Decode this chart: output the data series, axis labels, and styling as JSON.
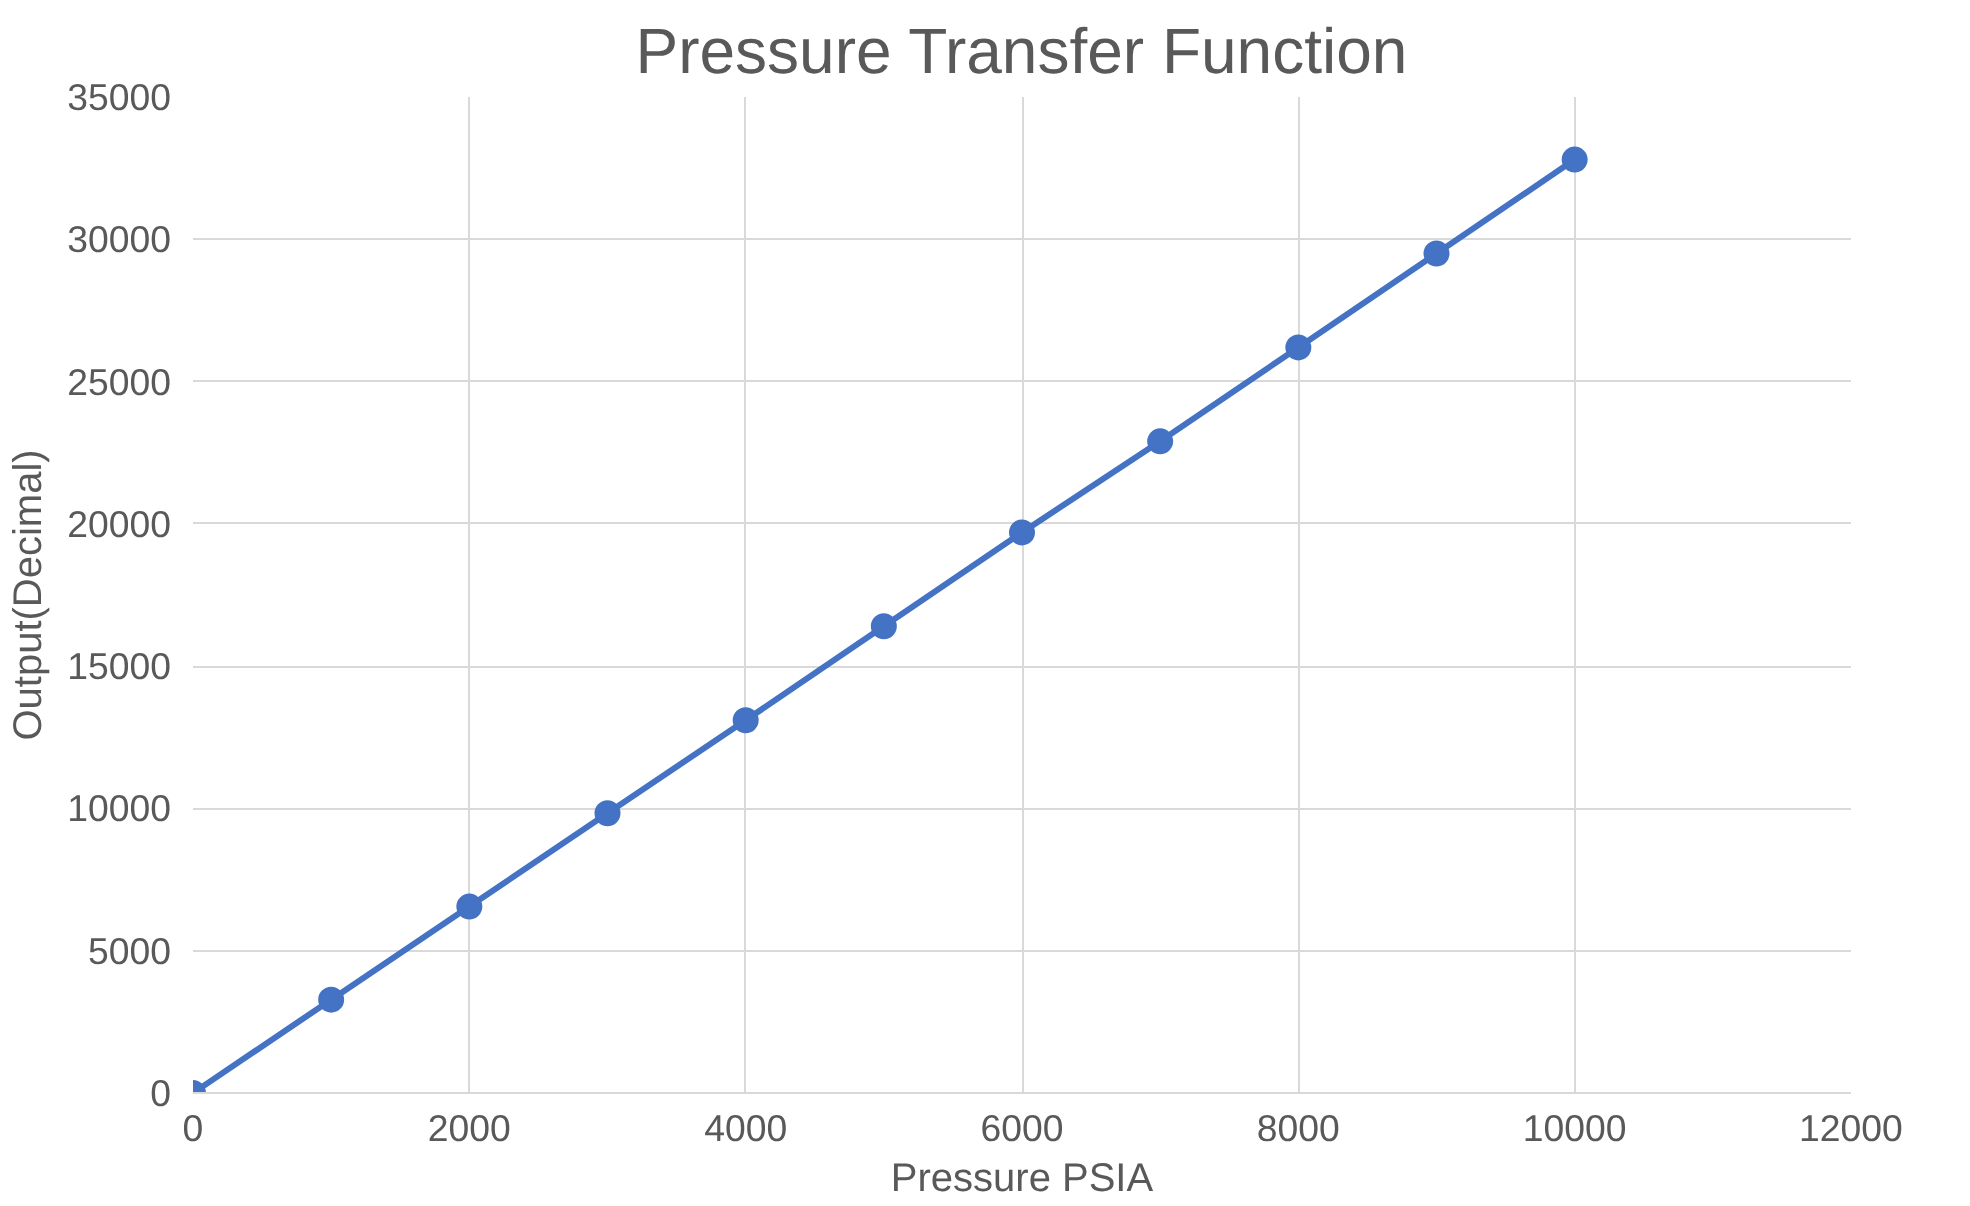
{
  "chart_data": {
    "type": "line",
    "title": "Pressure Transfer Function",
    "xlabel": "Pressure PSIA",
    "ylabel": "Output(Decimal)",
    "x": [
      0,
      1000,
      2000,
      3000,
      4000,
      5000,
      6000,
      7000,
      8000,
      9000,
      10000
    ],
    "series": [
      {
        "color": "#4472c4",
        "values": [
          0,
          3280,
          6550,
          9830,
          13100,
          16400,
          19700,
          22900,
          26200,
          29500,
          32800
        ]
      }
    ],
    "xlim": [
      0,
      12000
    ],
    "xticks": [
      0,
      2000,
      4000,
      6000,
      8000,
      10000,
      12000
    ],
    "ylim": [
      0,
      35000
    ],
    "yticks": [
      0,
      5000,
      10000,
      15000,
      20000,
      25000,
      30000,
      35000
    ],
    "grid": true,
    "marker": "circle",
    "line_style": "solid"
  }
}
